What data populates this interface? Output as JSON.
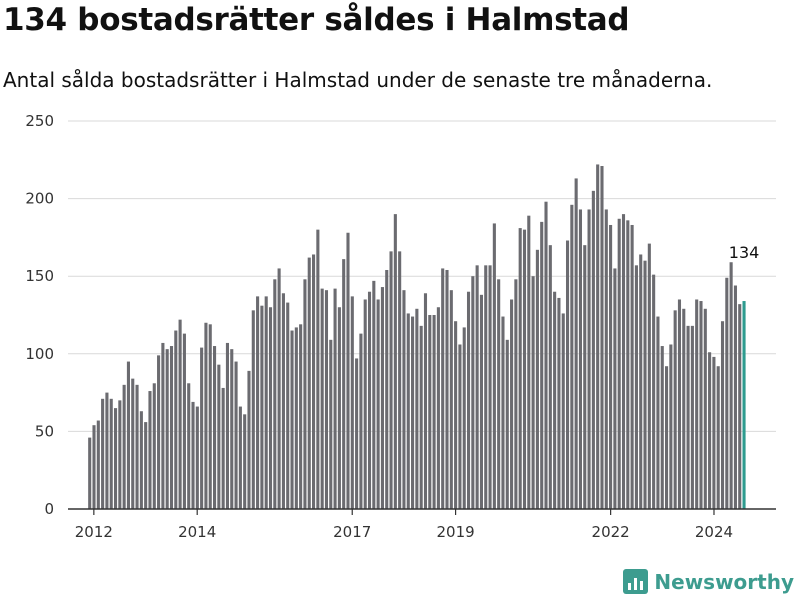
{
  "header": {
    "title": "134 bostadsrätter såldes i Halmstad",
    "subtitle": "Antal sålda bostadsrätter i Halmstad under de senaste tre månaderna."
  },
  "brand": {
    "name": "Newsworthy",
    "icon": "bar-chart-icon",
    "color": "#3d9c8f"
  },
  "chart_data": {
    "type": "bar",
    "title": "134 bostadsrätter såldes i Halmstad",
    "subtitle": "Antal sålda bostadsrätter i Halmstad under de senaste tre månaderna.",
    "xlabel": "",
    "ylabel": "",
    "ylim": [
      0,
      250
    ],
    "yticks": [
      0,
      50,
      100,
      150,
      200,
      250
    ],
    "xlim": [
      2011.5,
      2025.2
    ],
    "xticks": [
      2012,
      2014,
      2017,
      2019,
      2022,
      2024
    ],
    "xtick_labels": [
      "2012",
      "2014",
      "2017",
      "2019",
      "2022",
      "2024"
    ],
    "grid": true,
    "bar_color": "#6b6b70",
    "highlight_color": "#2e9b8f",
    "x_start": 2011.92,
    "x_step": 0.0833,
    "values": [
      46,
      54,
      57,
      71,
      75,
      71,
      65,
      70,
      80,
      95,
      84,
      80,
      63,
      56,
      76,
      81,
      99,
      107,
      103,
      105,
      115,
      122,
      113,
      81,
      69,
      66,
      104,
      120,
      119,
      105,
      93,
      78,
      107,
      103,
      95,
      66,
      61,
      89,
      128,
      137,
      131,
      137,
      130,
      148,
      155,
      139,
      133,
      115,
      117,
      119,
      148,
      162,
      164,
      180,
      142,
      141,
      109,
      142,
      130,
      161,
      178,
      137,
      97,
      113,
      135,
      140,
      147,
      135,
      143,
      154,
      166,
      190,
      166,
      141,
      126,
      124,
      129,
      118,
      139,
      125,
      125,
      130,
      155,
      154,
      141,
      121,
      106,
      117,
      140,
      150,
      157,
      138,
      157,
      157,
      184,
      148,
      124,
      109,
      135,
      148,
      181,
      180,
      189,
      150,
      167,
      185,
      198,
      170,
      140,
      136,
      126,
      173,
      196,
      213,
      193,
      170,
      193,
      205,
      222,
      221,
      193,
      183,
      155,
      187,
      190,
      186,
      183,
      157,
      164,
      160,
      171,
      151,
      124,
      105,
      92,
      106,
      128,
      135,
      129,
      118,
      118,
      135,
      134,
      129,
      101,
      98,
      92,
      121,
      149,
      159,
      144,
      132,
      134
    ],
    "highlight": {
      "label": "134",
      "value": 134
    }
  }
}
